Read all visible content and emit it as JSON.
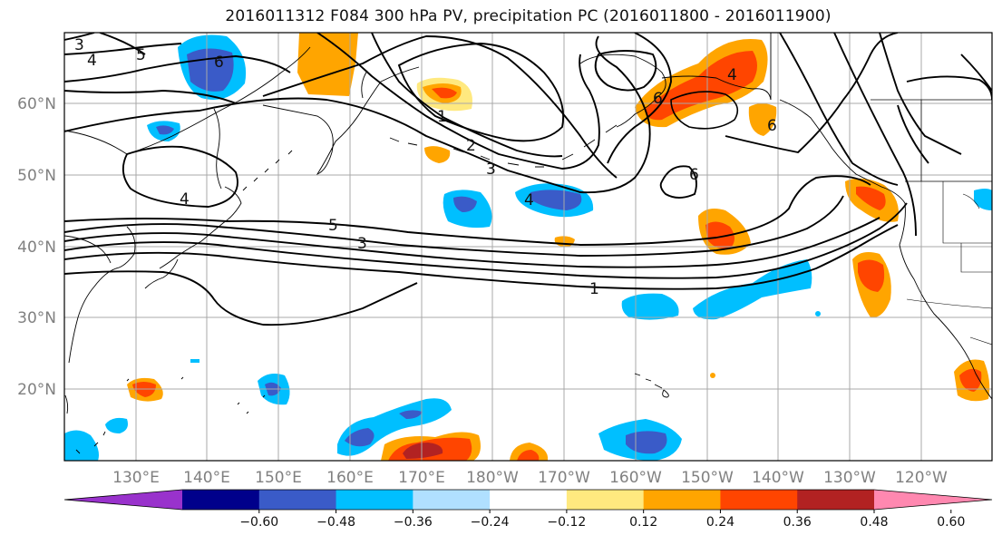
{
  "title": "2016011312 F084 300 hPa PV, precipitation PC (2016011800 - 2016011900)",
  "lon_labels": [
    "130°E",
    "140°E",
    "150°E",
    "160°E",
    "170°E",
    "180°W",
    "170°W",
    "160°W",
    "150°W",
    "140°W",
    "130°W",
    "120°W"
  ],
  "lat_labels": [
    "60°N",
    "50°N",
    "40°N",
    "30°N",
    "20°N"
  ],
  "colorbar": {
    "ticks": [
      "−0.60",
      "−0.48",
      "−0.36",
      "−0.24",
      "−0.12",
      "0.12",
      "0.24",
      "0.36",
      "0.48",
      "0.60"
    ],
    "colors": [
      "#9932cc",
      "#00008b",
      "#3a5bc8",
      "#00bfff",
      "#b0e0ff",
      "#ffffff",
      "#ffe97f",
      "#ffa500",
      "#ff4500",
      "#b22222",
      "#ff88b0"
    ]
  },
  "contour_labels": [
    {
      "text": "3",
      "name": "pv-label-3-nw"
    },
    {
      "text": "4",
      "name": "pv-label-4-nw"
    },
    {
      "text": "5",
      "name": "pv-label-5-nw"
    },
    {
      "text": "6",
      "name": "pv-label-6-west"
    },
    {
      "text": "4",
      "name": "pv-label-4-japan"
    },
    {
      "text": "5",
      "name": "pv-label-5-jet"
    },
    {
      "text": "3",
      "name": "pv-label-3-jet"
    },
    {
      "text": "1",
      "name": "pv-label-1-jet"
    },
    {
      "text": "1",
      "name": "pv-label-1-north"
    },
    {
      "text": "2",
      "name": "pv-label-2-north"
    },
    {
      "text": "3",
      "name": "pv-label-3-north"
    },
    {
      "text": "4",
      "name": "pv-label-4-central"
    },
    {
      "text": "6",
      "name": "pv-label-6-alaska"
    },
    {
      "text": "4",
      "name": "pv-label-4-alaska"
    },
    {
      "text": "6",
      "name": "pv-label-6-gulf"
    },
    {
      "text": "6",
      "name": "pv-label-6-east-low"
    }
  ]
}
